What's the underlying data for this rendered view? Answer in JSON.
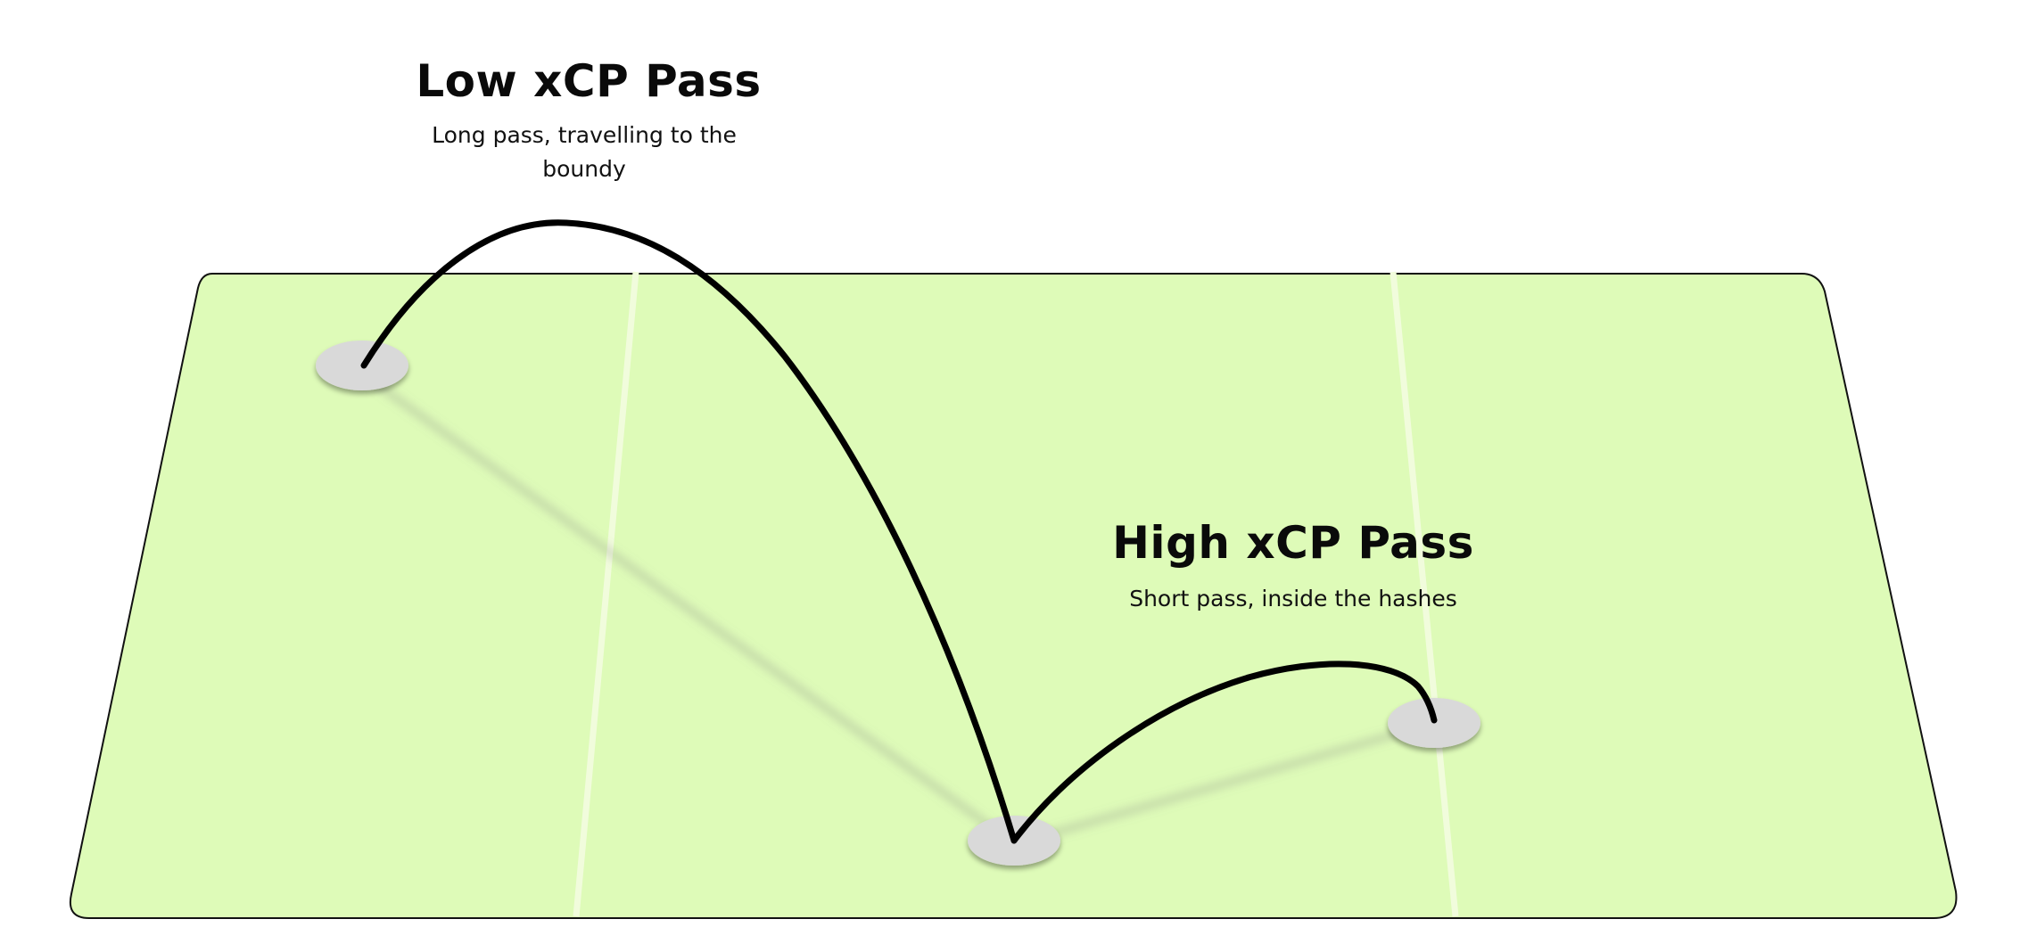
{
  "colors": {
    "field_fill": "#defbb8",
    "field_outline": "#111111",
    "field_lines": "#f1fcdc",
    "player_marker": "#d9d9d9",
    "pass_arc": "#000000"
  },
  "annotations": {
    "low": {
      "title": "Low xCP Pass",
      "description": "Long pass, travelling to the boundy"
    },
    "high": {
      "title": "High xCP Pass",
      "description": "Short pass, inside the hashes"
    }
  }
}
